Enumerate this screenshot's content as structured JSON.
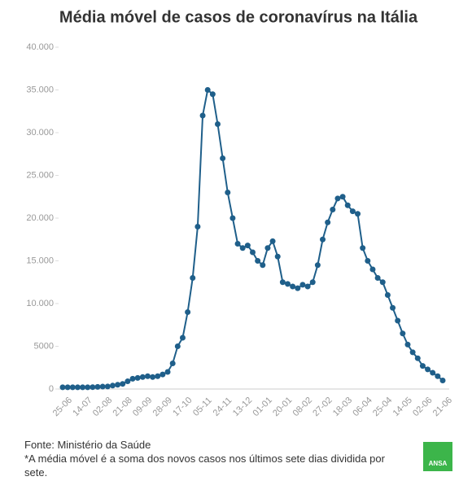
{
  "chart_data": {
    "type": "line",
    "title": "Média móvel de casos de coronavírus na Itália",
    "categories": [
      "25-06",
      null,
      null,
      null,
      "14-07",
      null,
      null,
      null,
      "02-08",
      null,
      null,
      null,
      "21-08",
      null,
      null,
      null,
      "09-09",
      null,
      null,
      null,
      "28-09",
      null,
      null,
      null,
      "17-10",
      null,
      null,
      null,
      "05-11",
      null,
      null,
      null,
      "24-11",
      null,
      null,
      null,
      "13-12",
      null,
      null,
      null,
      "01-01",
      null,
      null,
      null,
      "20-01",
      null,
      null,
      null,
      "08-02",
      null,
      null,
      null,
      "27-02",
      null,
      null,
      null,
      "18-03",
      null,
      null,
      null,
      "06-04",
      null,
      null,
      null,
      "25-04",
      null,
      null,
      null,
      "14-05",
      null,
      null,
      null,
      "02-06",
      null,
      null,
      null,
      "21-06"
    ],
    "series": [
      {
        "name": "Média móvel",
        "color": "#1f5f8a",
        "values": [
          200,
          200,
          200,
          200,
          200,
          200,
          220,
          250,
          280,
          300,
          400,
          500,
          600,
          900,
          1200,
          1300,
          1400,
          1500,
          1400,
          1500,
          1700,
          2000,
          3000,
          5000,
          6000,
          9000,
          13000,
          19000,
          32000,
          35000,
          34500,
          31000,
          27000,
          23000,
          20000,
          17000,
          16500,
          16800,
          16000,
          15000,
          14500,
          16500,
          17300,
          15500,
          12500,
          12300,
          12000,
          11800,
          12200,
          12000,
          12500,
          14500,
          17500,
          19500,
          21000,
          22300,
          22500,
          21500,
          20800,
          20500,
          16500,
          15000,
          14000,
          13000,
          12500,
          11000,
          9500,
          8000,
          6500,
          5200,
          4300,
          3600,
          2700,
          2300,
          1900,
          1500,
          1000
        ]
      }
    ],
    "ylim": [
      0,
      40000
    ],
    "yticks": [
      0,
      5000,
      {
        "value": 10000,
        "label": "10.000"
      },
      {
        "value": 15000,
        "label": "15.000"
      },
      {
        "value": 20000,
        "label": "20.000"
      },
      {
        "value": 25000,
        "label": "25.000"
      },
      {
        "value": 30000,
        "label": "30.000"
      },
      {
        "value": 35000,
        "label": "35.000"
      },
      {
        "value": 40000,
        "label": "40.000"
      }
    ],
    "grid": false,
    "source": "Fonte: Ministério da Saúde",
    "note": "*A média móvel é a soma dos novos casos nos últimos sete dias dividida por sete.",
    "logo": "ANSA"
  }
}
